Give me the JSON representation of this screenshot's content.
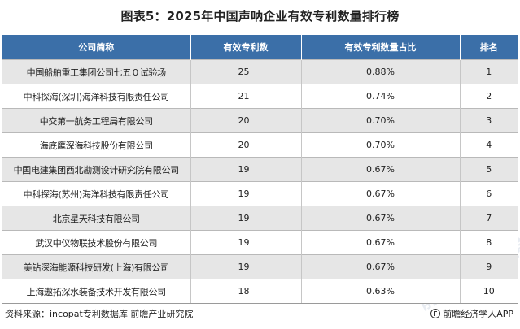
{
  "title": "图表5：2025年中国声呐企业有效专利数量排行榜",
  "table": {
    "headers": [
      "公司简称",
      "有效专利数",
      "有效专利数量占比",
      "排名"
    ],
    "rows": [
      {
        "company": "中国船舶重工集团公司七五０试验场",
        "count": "25",
        "share": "0.88%",
        "rank": "1"
      },
      {
        "company": "中科探海(深圳)海洋科技有限责任公司",
        "count": "21",
        "share": "0.74%",
        "rank": "2"
      },
      {
        "company": "中交第一航务工程局有限公司",
        "count": "20",
        "share": "0.70%",
        "rank": "3"
      },
      {
        "company": "海底鹰深海科技股份有限公司",
        "count": "20",
        "share": "0.70%",
        "rank": "4"
      },
      {
        "company": "中国电建集团西北勘测设计研究院有限公司",
        "count": "19",
        "share": "0.67%",
        "rank": "5"
      },
      {
        "company": "中科探海(苏州)海洋科技有限责任公司",
        "count": "19",
        "share": "0.67%",
        "rank": "6"
      },
      {
        "company": "北京星天科技有限公司",
        "count": "19",
        "share": "0.67%",
        "rank": "7"
      },
      {
        "company": "武汉中仪物联技术股份有限公司",
        "count": "19",
        "share": "0.67%",
        "rank": "8"
      },
      {
        "company": "美钻深海能源科技研发(上海)有限公司",
        "count": "19",
        "share": "0.67%",
        "rank": "9"
      },
      {
        "company": "上海遨拓深水装备技术开发有限公司",
        "count": "18",
        "share": "0.63%",
        "rank": "10"
      }
    ]
  },
  "watermark": "前瞻产业研究院",
  "footer": {
    "source": "资料来源：incopat专利数据库 前瞻产业研究院",
    "brand": "前瞻经济学人APP",
    "brand_icon": "qianzhan-logo-icon"
  }
}
